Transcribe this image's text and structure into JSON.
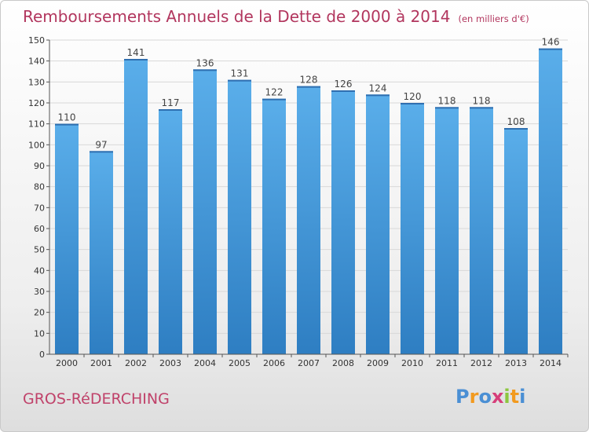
{
  "title": "Remboursements Annuels de la Dette de 2000 à 2014",
  "unit": "(en milliers d'€)",
  "town": "GROS-RéDERCHING",
  "logo": {
    "letters": [
      "P",
      "r",
      "o",
      "x",
      "i",
      "t",
      "i"
    ],
    "colors": [
      "#4a8fd4",
      "#f29a1f",
      "#4a8fd4",
      "#d63e7a",
      "#8cc63f",
      "#f29a1f",
      "#4a8fd4"
    ]
  },
  "colors": {
    "bar": "#4a9fe0",
    "bar_dark": "#2f7fc4",
    "axis": "#555555",
    "grid": "#d8d8d8"
  },
  "chart_data": {
    "type": "bar",
    "categories": [
      "2000",
      "2001",
      "2002",
      "2003",
      "2004",
      "2005",
      "2006",
      "2007",
      "2008",
      "2009",
      "2010",
      "2011",
      "2012",
      "2013",
      "2014"
    ],
    "values": [
      110,
      97,
      141,
      117,
      136,
      131,
      122,
      128,
      126,
      124,
      120,
      118,
      118,
      108,
      146
    ],
    "ylim": [
      0,
      150
    ],
    "yticks": [
      0,
      10,
      20,
      30,
      40,
      50,
      60,
      70,
      80,
      90,
      100,
      110,
      120,
      130,
      140,
      150
    ],
    "grid": true
  }
}
